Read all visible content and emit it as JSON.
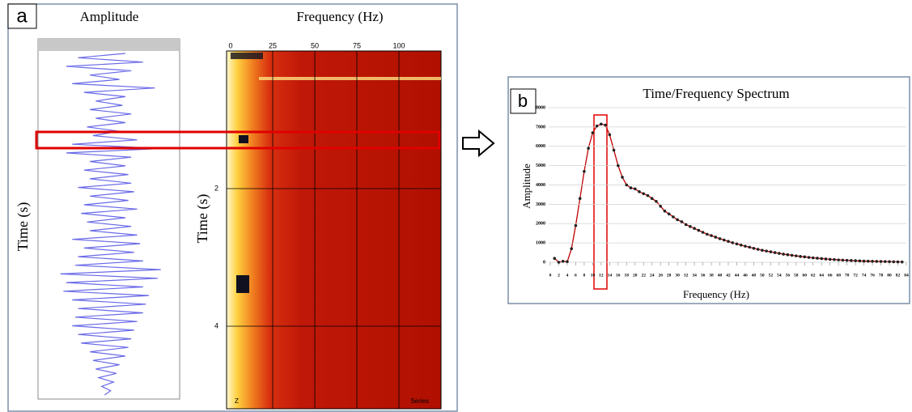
{
  "panel_labels": [
    "a",
    "b"
  ],
  "chart_data": [
    {
      "type": "wiggle",
      "title": "Amplitude",
      "y_label": "Time (s)",
      "color": "#6a6ae8",
      "xlim": [
        -1,
        1
      ],
      "ylim": [
        0,
        5
      ],
      "values": [
        0.3,
        -0.5,
        0.6,
        -0.7,
        0.4,
        -0.3,
        0.2,
        -0.6,
        0.8,
        -0.4,
        0.3,
        -0.2,
        0.25,
        -0.3,
        0.4,
        -0.2,
        0.3,
        -0.35,
        0.2,
        -0.25,
        0.5,
        -0.6,
        0.9,
        -0.7,
        0.4,
        -0.3,
        0.3,
        -0.4,
        0.35,
        -0.3,
        0.4,
        -0.5,
        0.45,
        -0.3,
        0.35,
        -0.4,
        0.5,
        -0.45,
        0.3,
        -0.35,
        0.4,
        -0.3,
        0.5,
        -0.6,
        0.55,
        -0.4,
        0.45,
        -0.5,
        0.6,
        -0.55,
        0.9,
        -0.8,
        0.85,
        -0.7,
        0.6,
        -0.75,
        0.7,
        -0.6,
        0.65,
        -0.5,
        0.6,
        -0.55,
        0.5,
        -0.6,
        0.45,
        -0.5,
        0.4,
        -0.45,
        0.35,
        -0.3,
        0.3,
        -0.25,
        0.2,
        -0.2,
        0.15,
        -0.15,
        0.1,
        -0.1,
        0.05,
        -0.05
      ]
    },
    {
      "type": "heatmap",
      "title": "Frequency (Hz)",
      "y_label": "Time (s)",
      "x_note": "Z",
      "x_note_right": "Series",
      "xlim": [
        0,
        125
      ],
      "xticks": [
        0,
        25,
        50,
        75,
        100
      ],
      "ylim": [
        0,
        5.2
      ],
      "yticks": [
        2,
        4
      ]
    },
    {
      "type": "line",
      "title": "Time/Frequency Spectrum",
      "x_label": "Frequency (Hz)",
      "y_label": "Amplitude",
      "xlim": [
        0,
        84
      ],
      "xticks": [
        0,
        2,
        4,
        6,
        8,
        10,
        12,
        14,
        16,
        18,
        20,
        22,
        24,
        26,
        28,
        30,
        32,
        34,
        36,
        38,
        40,
        42,
        44,
        46,
        48,
        50,
        52,
        54,
        56,
        58,
        60,
        62,
        64,
        66,
        68,
        70,
        72,
        74,
        76,
        78,
        80,
        82,
        84
      ],
      "ylim": [
        0,
        8000
      ],
      "yticks": [
        0,
        1000,
        2000,
        3000,
        4000,
        5000,
        6000,
        7000,
        8000
      ],
      "grid": true,
      "x": [
        1,
        2,
        3,
        4,
        5,
        6,
        7,
        8,
        9,
        10,
        11,
        12,
        13,
        14,
        15,
        16,
        17,
        18,
        19,
        20,
        21,
        22,
        23,
        24,
        25,
        26,
        27,
        28,
        29,
        30,
        31,
        32,
        33,
        34,
        35,
        36,
        37,
        38,
        39,
        40,
        41,
        42,
        43,
        44,
        45,
        46,
        47,
        48,
        49,
        50,
        51,
        52,
        53,
        54,
        55,
        56,
        57,
        58,
        59,
        60,
        61,
        62,
        63,
        64,
        65,
        66,
        67,
        68,
        69,
        70,
        71,
        72,
        73,
        74,
        75,
        76,
        77,
        78,
        79,
        80,
        81,
        82,
        83
      ],
      "series": [
        {
          "color": "#c00000",
          "values": [
            200,
            0,
            50,
            30,
            700,
            1900,
            3300,
            4700,
            5900,
            6700,
            7050,
            7150,
            7100,
            6600,
            5800,
            5000,
            4400,
            4000,
            3850,
            3800,
            3650,
            3550,
            3450,
            3300,
            3150,
            2900,
            2650,
            2500,
            2350,
            2200,
            2100,
            1950,
            1850,
            1750,
            1650,
            1550,
            1450,
            1380,
            1300,
            1220,
            1150,
            1080,
            1010,
            950,
            890,
            830,
            780,
            720,
            670,
            620,
            580,
            540,
            500,
            460,
            420,
            390,
            360,
            330,
            300,
            280,
            250,
            230,
            210,
            190,
            170,
            150,
            140,
            120,
            110,
            100,
            90,
            80,
            70,
            60,
            55,
            50,
            45,
            40,
            35,
            30,
            25,
            20,
            15
          ]
        }
      ]
    }
  ]
}
